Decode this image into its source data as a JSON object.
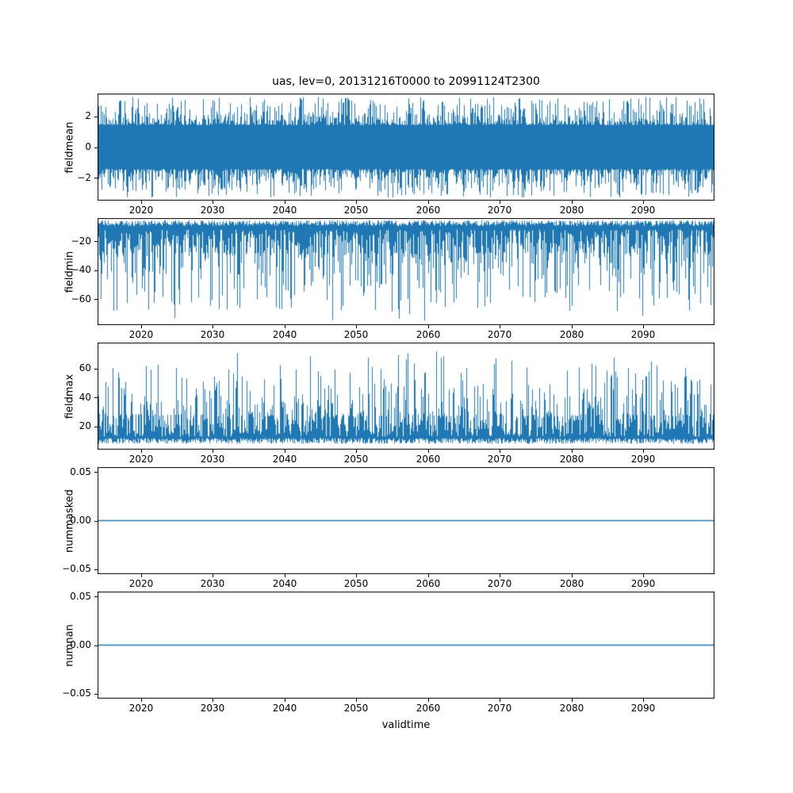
{
  "chart_data": {
    "type": "line",
    "title": "uas, lev=0, 20131216T0000 to 20991124T2300",
    "xlabel": "validtime",
    "line_color": "#1f77b4",
    "x_axis": {
      "lim": [
        2013.96,
        2099.92
      ],
      "ticks": [
        2020,
        2030,
        2040,
        2050,
        2060,
        2070,
        2080,
        2090
      ],
      "tick_labels": [
        "2020",
        "2030",
        "2040",
        "2050",
        "2060",
        "2070",
        "2080",
        "2090"
      ],
      "start": "20131216T0000",
      "end": "20991124T2300"
    },
    "panels": [
      {
        "ylabel": "fieldmean",
        "ylim": [
          -3.5,
          3.5
        ],
        "yticks": [
          2,
          0,
          -2
        ],
        "ytick_labels": [
          "2",
          "0",
          "−2"
        ],
        "series": [
          {
            "name": "fieldmean",
            "description": "high-frequency noise centered on 0",
            "mean": 0,
            "approx_range": [
              -3.3,
              3.3
            ]
          }
        ],
        "gen": {
          "kind": "band",
          "seed": 42,
          "base": 1.45,
          "extra": 1.85,
          "power": 2.6
        }
      },
      {
        "ylabel": "fieldmin",
        "ylim": [
          -78,
          -4
        ],
        "yticks": [
          -20,
          -40,
          -60
        ],
        "ytick_labels": [
          "−20",
          "−40",
          "−60"
        ],
        "series": [
          {
            "name": "fieldmin",
            "description": "dense band near −6 to −30 with frequent downward spikes",
            "typical_range": [
              -30,
              -6
            ],
            "spikes_to": -75
          }
        ],
        "gen": {
          "kind": "spikes",
          "seed": 7,
          "dir": -1,
          "edge_base": 5.5,
          "edge_jit": 4,
          "base": 12,
          "base_extra": 17,
          "base_power": 1.4,
          "spike_prob": 0.42,
          "spike_base": 28,
          "spike_extra": 40,
          "spike_power": 1.7,
          "rare_prob": 0.012,
          "rare_extra": 7
        }
      },
      {
        "ylabel": "fieldmax",
        "ylim": [
          4,
          78
        ],
        "yticks": [
          60,
          40,
          20
        ],
        "ytick_labels": [
          "60",
          "40",
          "20"
        ],
        "series": [
          {
            "name": "fieldmax",
            "description": "dense band near 9 to 30 with frequent upward spikes",
            "typical_range": [
              9,
              30
            ],
            "spikes_to": 72
          }
        ],
        "gen": {
          "kind": "spikes",
          "seed": 13,
          "dir": 1,
          "edge_base": 8,
          "edge_jit": 4,
          "base": 13,
          "base_extra": 16,
          "base_power": 1.4,
          "spike_prob": 0.4,
          "spike_base": 27,
          "spike_extra": 38,
          "spike_power": 1.7,
          "rare_prob": 0.01,
          "rare_extra": 7
        }
      },
      {
        "ylabel": "nummasked",
        "ylim": [
          -0.055,
          0.055
        ],
        "yticks": [
          0.05,
          0,
          -0.05
        ],
        "ytick_labels": [
          "0.05",
          "0.00",
          "−0.05"
        ],
        "series": [
          {
            "name": "nummasked",
            "description": "constant zero",
            "value": 0
          }
        ],
        "gen": {
          "kind": "flat",
          "seed": 1,
          "value": 0
        }
      },
      {
        "ylabel": "numnan",
        "ylim": [
          -0.055,
          0.055
        ],
        "yticks": [
          0.05,
          0,
          -0.05
        ],
        "ytick_labels": [
          "0.05",
          "0.00",
          "−0.05"
        ],
        "series": [
          {
            "name": "numnan",
            "description": "constant zero",
            "value": 0
          }
        ],
        "gen": {
          "kind": "flat",
          "seed": 2,
          "value": 0
        }
      }
    ]
  }
}
